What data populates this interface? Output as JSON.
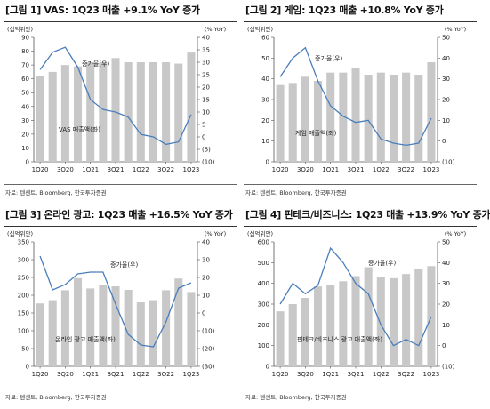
{
  "chart_data": [
    {
      "type": "bar",
      "title": "[그림 1] VAS: 1Q23 매출 +9.1% YoY 증가",
      "left_unit": "(십억위안)",
      "right_unit": "(% YoY)",
      "categories": [
        "1Q20",
        "2Q20",
        "3Q20",
        "4Q20",
        "1Q21",
        "2Q21",
        "3Q21",
        "4Q21",
        "1Q22",
        "2Q22",
        "3Q22",
        "4Q22",
        "1Q23"
      ],
      "x_tick_labels": [
        "1Q20",
        "3Q20",
        "1Q21",
        "3Q21",
        "1Q22",
        "3Q22",
        "1Q23"
      ],
      "series": [
        {
          "name": "VAS 매출액(좌)",
          "axis": "left",
          "type": "bar",
          "values": [
            62,
            65,
            70,
            69,
            72,
            72,
            75,
            72,
            72,
            72,
            72,
            71,
            79
          ]
        },
        {
          "name": "증가율(우)",
          "axis": "right",
          "type": "line",
          "values": [
            27,
            34,
            36,
            28,
            15,
            11,
            10,
            8,
            1,
            0,
            -3,
            -2,
            9
          ]
        }
      ],
      "ylim_left": [
        0,
        90
      ],
      "yticks_left": [
        0,
        10,
        20,
        30,
        40,
        50,
        60,
        70,
        80,
        90
      ],
      "ylim_right": [
        -10,
        40
      ],
      "yticks_right": [
        "(10)",
        "(5)",
        "0",
        "5",
        "10",
        "15",
        "20",
        "25",
        "30",
        "35",
        "40"
      ],
      "source": "자료: 텐센트, Bloomberg, 한국투자증권"
    },
    {
      "type": "bar",
      "title": "[그림 2] 게임: 1Q23 매출 +10.8% YoY 증가",
      "left_unit": "(십억위안)",
      "right_unit": "(% YoY)",
      "categories": [
        "1Q20",
        "2Q20",
        "3Q20",
        "4Q20",
        "1Q21",
        "2Q21",
        "3Q21",
        "4Q21",
        "1Q22",
        "2Q22",
        "3Q22",
        "4Q22",
        "1Q23"
      ],
      "x_tick_labels": [
        "1Q20",
        "3Q20",
        "1Q21",
        "3Q21",
        "1Q22",
        "3Q22",
        "1Q23"
      ],
      "series": [
        {
          "name": "게임 매출액(좌)",
          "axis": "left",
          "type": "bar",
          "values": [
            37,
            38,
            41,
            39,
            43,
            43,
            45,
            42,
            43,
            42,
            43,
            42,
            48
          ]
        },
        {
          "name": "증가율(우)",
          "axis": "right",
          "type": "line",
          "values": [
            31,
            40,
            45,
            29,
            17,
            12,
            9,
            10,
            1,
            -1,
            -2,
            -1,
            11
          ]
        }
      ],
      "ylim_left": [
        0,
        60
      ],
      "yticks_left": [
        0,
        10,
        20,
        30,
        40,
        50,
        60
      ],
      "ylim_right": [
        -10,
        50
      ],
      "yticks_right": [
        "(10)",
        "0",
        "10",
        "20",
        "30",
        "40",
        "50"
      ],
      "source": "자료: 텐센트, Bloomberg, 한국투자증권"
    },
    {
      "type": "bar",
      "title": "[그림 3] 온라인 광고: 1Q23 매출 +16.5% YoY 증가",
      "left_unit": "(십억위안)",
      "right_unit": "(% YoY)",
      "categories": [
        "1Q20",
        "2Q20",
        "3Q20",
        "4Q20",
        "1Q21",
        "2Q21",
        "3Q21",
        "4Q21",
        "1Q22",
        "2Q22",
        "3Q22",
        "4Q22",
        "1Q23"
      ],
      "x_tick_labels": [
        "1Q20",
        "3Q20",
        "1Q21",
        "3Q21",
        "1Q22",
        "3Q22",
        "1Q23"
      ],
      "series": [
        {
          "name": "온라인 광고 매출액(좌)",
          "axis": "left",
          "type": "bar",
          "values": [
            177,
            186,
            214,
            248,
            219,
            230,
            225,
            215,
            180,
            186,
            214,
            247,
            209
          ]
        },
        {
          "name": "증가율(우)",
          "axis": "right",
          "type": "line",
          "values": [
            32,
            13,
            16,
            22,
            23,
            23,
            5,
            -12,
            -18,
            -19,
            -5,
            14,
            17
          ]
        }
      ],
      "ylim_left": [
        0,
        350
      ],
      "yticks_left": [
        0,
        50,
        100,
        150,
        200,
        250,
        300,
        350
      ],
      "ylim_right": [
        -30,
        40
      ],
      "yticks_right": [
        "(30)",
        "(20)",
        "(10)",
        "0",
        "10",
        "20",
        "30",
        "40"
      ],
      "source": "자료: 텐센트, Bloomberg, 한국투자증권"
    },
    {
      "type": "bar",
      "title": "[그림 4] 핀테크/비즈니스: 1Q23 매출 +13.9% YoY 증가",
      "left_unit": "(십억위안)",
      "right_unit": "(% YoY)",
      "categories": [
        "1Q20",
        "2Q20",
        "3Q20",
        "4Q20",
        "1Q21",
        "2Q21",
        "3Q21",
        "4Q21",
        "1Q22",
        "2Q22",
        "3Q22",
        "4Q22",
        "1Q23"
      ],
      "x_tick_labels": [
        "1Q20",
        "3Q20",
        "1Q21",
        "3Q21",
        "1Q22",
        "3Q22",
        "1Q23"
      ],
      "series": [
        {
          "name": "핀테크/비즈니스 광고 매출액(좌)",
          "axis": "left",
          "type": "bar",
          "values": [
            265,
            300,
            330,
            385,
            390,
            410,
            435,
            478,
            430,
            425,
            445,
            470,
            483
          ]
        },
        {
          "name": "증가율(우)",
          "axis": "right",
          "type": "line",
          "values": [
            20,
            30,
            25,
            29,
            47,
            40,
            30,
            25,
            10,
            0,
            3,
            0,
            14
          ]
        }
      ],
      "ylim_left": [
        0,
        600
      ],
      "yticks_left": [
        0,
        100,
        200,
        300,
        400,
        500,
        600
      ],
      "ylim_right": [
        -10,
        50
      ],
      "yticks_right": [
        "(10)",
        "0",
        "10",
        "20",
        "30",
        "40",
        "50"
      ],
      "source": "자료: 텐센트, Bloomberg, 한국투자증권"
    }
  ],
  "annotations": [
    {
      "line": "증가율(우)",
      "bar": "VAS 매출액(좌)"
    },
    {
      "line": "증가율(우)",
      "bar": "게임 매출액(좌)"
    },
    {
      "line": "증가율(우)",
      "bar": "온라인 광고 매출액(좌)"
    },
    {
      "line": "증가율(우)",
      "bar": "핀테크/비즈니스 광고 매출액(좌)"
    }
  ],
  "colors": {
    "bar": "#c8c8c8",
    "line": "#4a7ebb",
    "axis": "#555555",
    "text": "#222222"
  }
}
